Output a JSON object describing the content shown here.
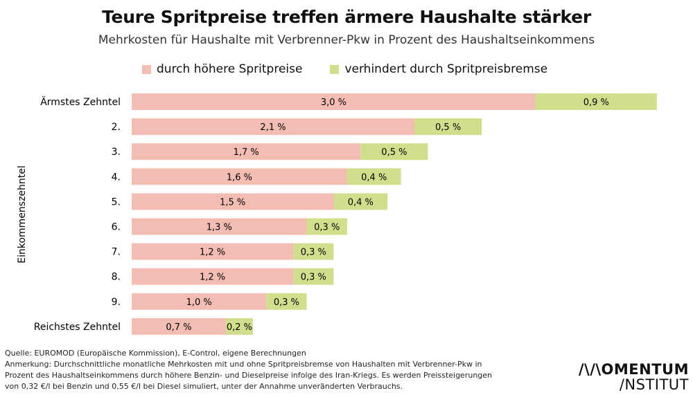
{
  "chart_data": {
    "type": "bar",
    "orientation": "horizontal",
    "stacked": true,
    "title": "Teure Spritpreise treffen ärmere Haushalte stärker",
    "subtitle": "Mehrkosten für Haushalte mit Verbrenner-Pkw in Prozent des Haushaltseinkommens",
    "ylabel": "Einkommenszehntel",
    "xlabel": "",
    "categories": [
      "Ärmstes Zehntel",
      "2.",
      "3.",
      "4.",
      "5.",
      "6.",
      "7.",
      "8.",
      "9.",
      "Reichstes Zehntel"
    ],
    "series": [
      {
        "name": "durch höhere Spritpreise",
        "color": "#f4bdb3",
        "values": [
          3.0,
          2.1,
          1.7,
          1.6,
          1.5,
          1.3,
          1.2,
          1.2,
          1.0,
          0.7
        ],
        "labels": [
          "3,0 %",
          "2,1 %",
          "1,7 %",
          "1,6 %",
          "1,5 %",
          "1,3 %",
          "1,2 %",
          "1,2 %",
          "1,0 %",
          "0,7 %"
        ]
      },
      {
        "name": "verhindert durch Spritpreisbremse",
        "color": "#cfdf8c",
        "values": [
          0.9,
          0.5,
          0.5,
          0.4,
          0.4,
          0.3,
          0.3,
          0.3,
          0.3,
          0.2
        ],
        "labels": [
          "0,9 %",
          "0,5 %",
          "0,5 %",
          "0,4 %",
          "0,4 %",
          "0,3 %",
          "0,3 %",
          "0,3 %",
          "0,3 %",
          "0,2 %"
        ]
      }
    ],
    "legend_position": "top",
    "grid": false,
    "xlim": [
      0,
      4.0
    ]
  },
  "footer": {
    "source": "Quelle: EUROMOD (Europäische Kommission), E-Control, eigene Berechnungen",
    "note": "Anmerkung: Durchschnittliche monatliche Mehrkosten mit und ohne Spritpreisbremse von Haushalten mit Verbrenner-Pkw in Prozent des Haushaltseinkommens durch höhere Benzin- und Dieselpreise infolge des Iran-Kriegs. Es werden Preissteigerungen von 0,32 €/l bei Benzin und 0,55 €/l bei Diesel simuliert, unter der Annahme unveränderten Verbrauchs."
  },
  "logo": {
    "line1": "/\\/\\OMENTUM",
    "line2": "/NSTITUT"
  }
}
